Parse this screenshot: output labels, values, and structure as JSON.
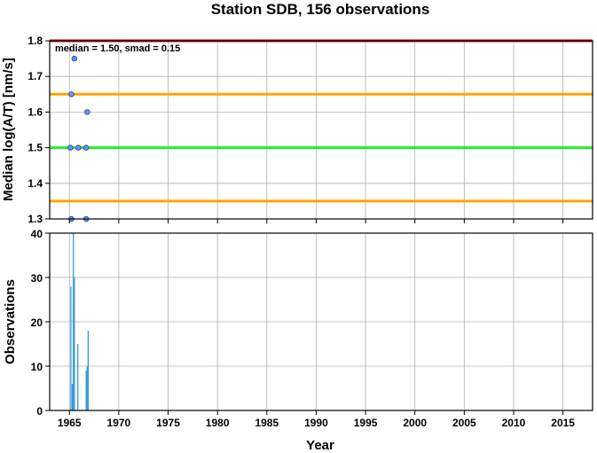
{
  "chart_data": [
    {
      "type": "scatter",
      "title": "Station SDB, 156 observations",
      "ylabel": "Median log(A/T) [nm/s]",
      "xlabel": "",
      "annotation": "median = 1.50, smad = 0.15",
      "xlim": [
        1963,
        2018
      ],
      "ylim": [
        1.3,
        1.8
      ],
      "yticks": [
        "1.3",
        "1.4",
        "1.5",
        "1.6",
        "1.7",
        "1.8"
      ],
      "grid": true,
      "reference_lines": [
        {
          "y": 1.8,
          "color": "#cc0000"
        },
        {
          "y": 1.65,
          "color": "#ffa500"
        },
        {
          "y": 1.5,
          "color": "#22ee22"
        },
        {
          "y": 1.35,
          "color": "#ffa500"
        }
      ],
      "points": [
        {
          "x": 1965.1,
          "y": 1.5
        },
        {
          "x": 1965.2,
          "y": 1.65
        },
        {
          "x": 1965.2,
          "y": 1.3
        },
        {
          "x": 1965.5,
          "y": 1.75
        },
        {
          "x": 1965.9,
          "y": 1.5
        },
        {
          "x": 1966.7,
          "y": 1.5
        },
        {
          "x": 1966.8,
          "y": 1.6
        },
        {
          "x": 1966.7,
          "y": 1.3
        }
      ],
      "point_color": "#6699ff"
    },
    {
      "type": "bar",
      "ylabel": "Observations",
      "xlabel": "Year",
      "xlim": [
        1963,
        2018
      ],
      "ylim": [
        0,
        40
      ],
      "yticks": [
        "0",
        "10",
        "20",
        "30",
        "40"
      ],
      "xticks": [
        "1965",
        "1970",
        "1975",
        "1980",
        "1985",
        "1990",
        "1995",
        "2000",
        "2005",
        "2010",
        "2015"
      ],
      "grid": true,
      "bar_color": "#3399dd",
      "bars": [
        {
          "x": 1965.15,
          "y": 28
        },
        {
          "x": 1965.3,
          "y": 6
        },
        {
          "x": 1965.4,
          "y": 40
        },
        {
          "x": 1965.5,
          "y": 30
        },
        {
          "x": 1965.85,
          "y": 15
        },
        {
          "x": 1966.7,
          "y": 9
        },
        {
          "x": 1966.8,
          "y": 10
        },
        {
          "x": 1966.9,
          "y": 18
        }
      ]
    }
  ]
}
